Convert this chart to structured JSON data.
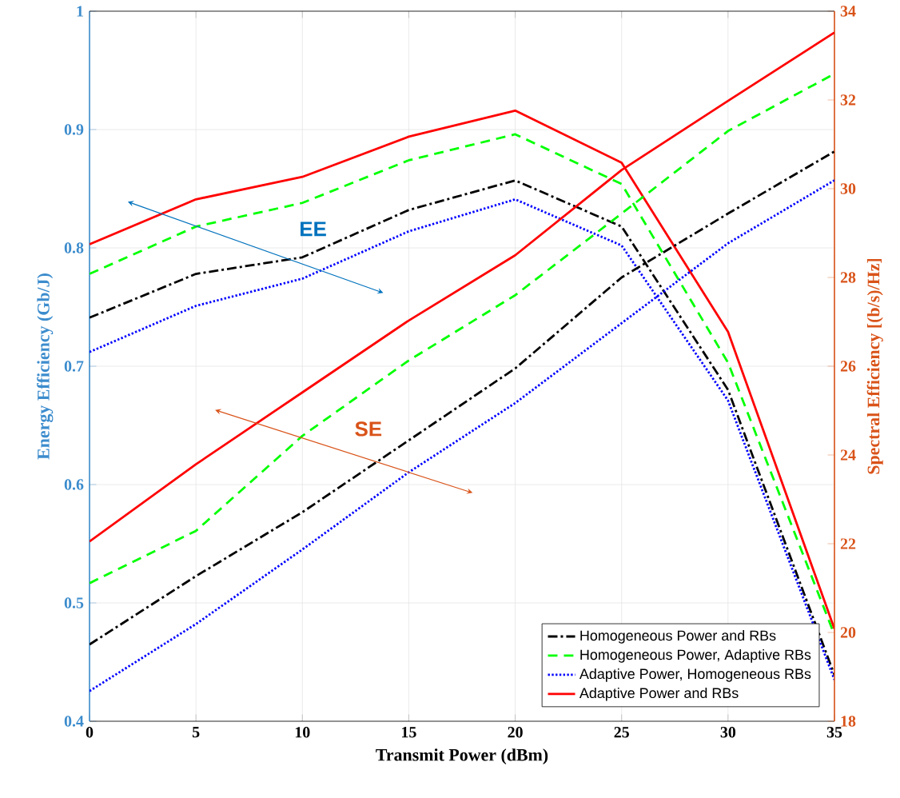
{
  "chart_data": {
    "type": "line",
    "xlabel": "Transmit Power (dBm)",
    "ylabel": "Energy Efficiency (Gb/J)",
    "y2label": "Spectral Efficiency [(b/s)/Hz]",
    "x": [
      0,
      5,
      10,
      15,
      20,
      25,
      30,
      35
    ],
    "series": [
      {
        "color": "#000000",
        "line_style": "dashdot",
        "values": [
          0.741,
          0.778,
          0.792,
          0.832,
          0.857,
          0.818,
          0.68,
          0.439
        ]
      },
      {
        "color": "#00ff00",
        "line_style": "dashed",
        "values": [
          0.778,
          0.818,
          0.838,
          0.874,
          0.896,
          0.854,
          0.703,
          0.473
        ]
      },
      {
        "color": "#0000ff",
        "line_style": "dotted",
        "values": [
          0.712,
          0.751,
          0.774,
          0.814,
          0.841,
          0.802,
          0.671,
          0.435
        ]
      },
      {
        "color": "#ff0000",
        "line_style": "solid",
        "values": [
          0.803,
          0.841,
          0.86,
          0.894,
          0.916,
          0.872,
          0.729,
          0.478
        ]
      },
      {
        "name": "Homogeneous Power and RBs",
        "color": "#000000",
        "line_style": "dashdot",
        "axis": "y2",
        "values": [
          19.73,
          21.27,
          22.71,
          24.33,
          25.95,
          28.0,
          29.44,
          30.84
        ]
      },
      {
        "name": "Homogeneous Power, Adaptive RBs",
        "color": "#00ff00",
        "line_style": "dashed",
        "axis": "y2",
        "values": [
          21.11,
          22.29,
          24.43,
          26.13,
          27.6,
          29.44,
          31.3,
          32.59
        ]
      },
      {
        "name": "Adaptive Power, Homogeneous RBs",
        "color": "#0000ff",
        "line_style": "dotted",
        "axis": "y2",
        "values": [
          18.68,
          20.19,
          21.87,
          23.61,
          25.17,
          26.97,
          28.77,
          30.19
        ]
      },
      {
        "name": "Adaptive Power and RBs",
        "color": "#ff0000",
        "line_style": "solid",
        "axis": "y2",
        "values": [
          22.05,
          23.79,
          25.41,
          27.03,
          28.5,
          30.42,
          31.98,
          33.52
        ]
      }
    ],
    "xlim": [
      0,
      35
    ],
    "xticks": [
      0,
      5,
      10,
      15,
      20,
      25,
      30,
      35
    ],
    "ylim": [
      0.4,
      1
    ],
    "yticks": [
      0.4,
      0.5,
      0.6,
      0.7,
      0.8,
      0.9,
      1
    ],
    "y2lim": [
      18,
      34
    ],
    "y2ticks": [
      18,
      20,
      22,
      24,
      26,
      28,
      30,
      32,
      34
    ],
    "annotations": [
      "EE",
      "SE"
    ],
    "grid": true,
    "legend": "bottom right",
    "marker": "none"
  }
}
